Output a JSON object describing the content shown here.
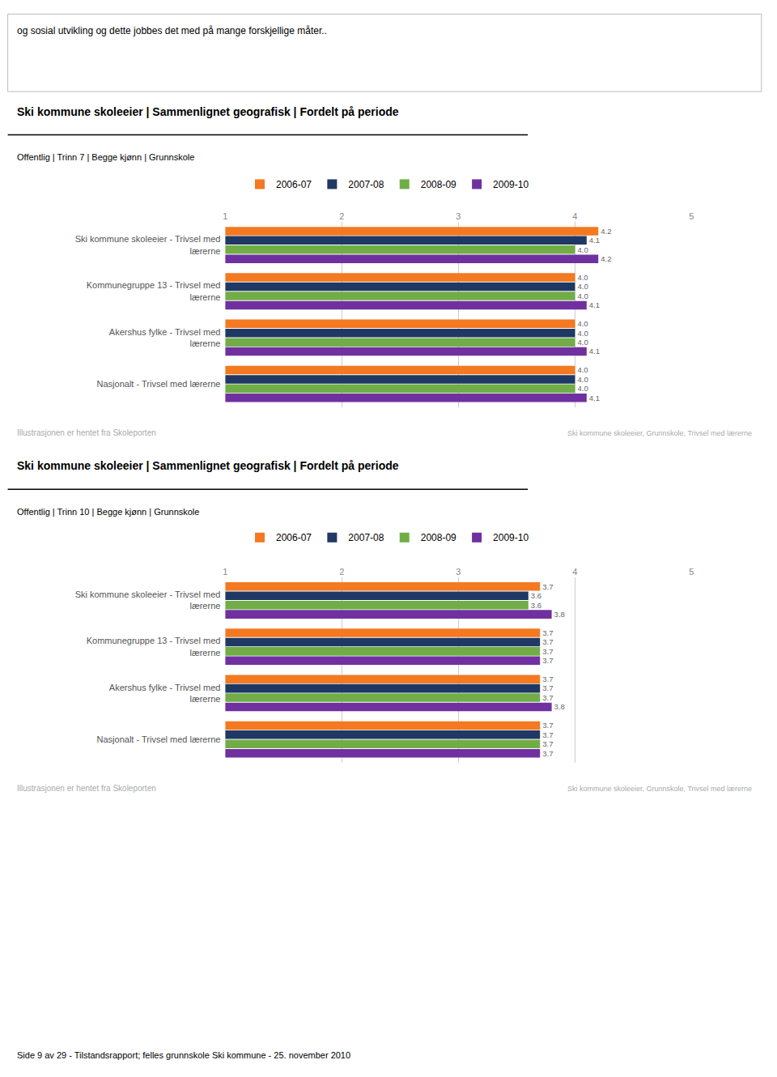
{
  "page_text_top": "og sosial utvikling og dette jobbes det med på mange forskjellige måter..",
  "footer_text": "Side 9 av 29 - Tilstandsrapport; felles grunnskole Ski kommune - 25. november 2010",
  "chart_data": [
    {
      "type": "bar",
      "orientation": "horizontal",
      "title": "Ski kommune skoleeier | Sammenlignet geografisk | Fordelt på periode",
      "subtitle": "Offentlig | Trinn 7 | Begge kjønn | Grunnskole",
      "annotations": [
        "Illustrasjonen er hentet fra Skoleporten",
        "Ski kommune skoleeier, Grunnskole, Trivsel med lærerne"
      ],
      "categories": [
        "Ski kommune skoleeier - Trivsel med\nlærerne",
        "Kommunegruppe 13 - Trivsel med\nlærerne",
        "Akershus fylke - Trivsel med\nlærerne",
        "Nasjonalt - Trivsel med lærerne"
      ],
      "series": [
        {
          "name": "2006-07",
          "color": "#F47920",
          "values": [
            4.2,
            4.0,
            4.0,
            4.0
          ],
          "value_labels": [
            "4.2",
            "4.0",
            "4.0",
            "4.0"
          ]
        },
        {
          "name": "2007-08",
          "color": "#1F3864",
          "values": [
            4.1,
            4.0,
            4.0,
            4.0
          ],
          "value_labels": [
            "4.1",
            "4.0",
            "4.0",
            "4.0"
          ]
        },
        {
          "name": "2008-09",
          "color": "#70AD47",
          "values": [
            4.0,
            4.0,
            4.0,
            4.0
          ],
          "value_labels": [
            "4.0",
            "4.0",
            "4.0",
            "4.0"
          ]
        },
        {
          "name": "2009-10",
          "color": "#7030A0",
          "values": [
            4.2,
            4.1,
            4.1,
            4.1
          ],
          "value_labels": [
            "4.2",
            "4.1",
            "4.1",
            "4.1"
          ]
        }
      ],
      "xlim": [
        1,
        5
      ],
      "xticks": [
        1,
        2,
        3,
        4,
        5
      ],
      "grid": true,
      "data_labels": true,
      "legend": "top"
    },
    {
      "type": "bar",
      "orientation": "horizontal",
      "title": "Ski kommune skoleeier | Sammenlignet geografisk | Fordelt på periode",
      "subtitle": "Offentlig | Trinn 10 | Begge kjønn | Grunnskole",
      "annotations": [
        "Illustrasjonen er hentet fra Skoleporten",
        "Ski kommune skoleeier, Grunnskole, Trivsel med lærerne"
      ],
      "categories": [
        "Ski kommune skoleeier - Trivsel med\nlærerne",
        "Kommunegruppe 13 - Trivsel med\nlærerne",
        "Akershus fylke - Trivsel med\nlærerne",
        "Nasjonalt - Trivsel med lærerne"
      ],
      "series": [
        {
          "name": "2006-07",
          "color": "#F47920",
          "values": [
            3.7,
            3.7,
            3.7,
            3.7
          ],
          "value_labels": [
            "3.7",
            "3.7",
            "3.7",
            "3.7"
          ]
        },
        {
          "name": "2007-08",
          "color": "#1F3864",
          "values": [
            3.6,
            3.7,
            3.7,
            3.7
          ],
          "value_labels": [
            "3.6",
            "3.7",
            "3.7",
            "3.7"
          ]
        },
        {
          "name": "2008-09",
          "color": "#70AD47",
          "values": [
            3.6,
            3.7,
            3.7,
            3.7
          ],
          "value_labels": [
            "3.6",
            "3.7",
            "3.7",
            "3.7"
          ]
        },
        {
          "name": "2009-10",
          "color": "#7030A0",
          "values": [
            3.8,
            3.7,
            3.8,
            3.7
          ],
          "value_labels": [
            "3.8",
            "3.7",
            "3.8",
            "3.7"
          ]
        }
      ],
      "xlim": [
        1,
        5
      ],
      "xticks": [
        1,
        2,
        3,
        4,
        5
      ],
      "grid": true,
      "data_labels": true,
      "legend": "top"
    }
  ]
}
